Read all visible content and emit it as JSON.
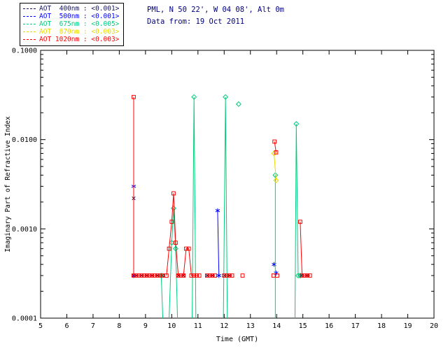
{
  "header": {
    "line1": "PML, N 50 22', W 04 08', Alt 0m",
    "line2": "Data from: 19 Oct 2011",
    "color": "#000080"
  },
  "legend": {
    "items": [
      {
        "label": "AOT  400nm : <0.001>",
        "color": "#16165e"
      },
      {
        "label": "AOT  500nm : <0.001>",
        "color": "#0000ff"
      },
      {
        "label": "AOT  675nm : <0.005>",
        "color": "#00cd7e"
      },
      {
        "label": "AOT  870nm : <0.003>",
        "color": "#e8d800"
      },
      {
        "label": "AOT 1020nm : <0.003>",
        "color": "#ff0000"
      }
    ]
  },
  "chart_data": {
    "type": "line",
    "title": "",
    "xlabel": "Time (GMT)",
    "ylabel": "Imaginary Part of Refractive Index",
    "xlim": [
      5,
      20
    ],
    "x_ticks": [
      5,
      6,
      7,
      8,
      9,
      10,
      11,
      12,
      13,
      14,
      15,
      16,
      17,
      18,
      19,
      20
    ],
    "x_tick_labels": [
      "5",
      "6",
      "7",
      "8",
      "9",
      "10",
      "11",
      "12",
      "13",
      "14",
      "15",
      "16",
      "17",
      "18",
      "19",
      "20"
    ],
    "ylog": true,
    "ylim": [
      0.0001,
      0.1
    ],
    "y_ticks": [
      0.0001,
      0.001,
      0.01,
      0.1
    ],
    "y_tick_labels": [
      "0.0001",
      "0.0010",
      "0.0100",
      "0.1000"
    ],
    "grid": false,
    "legend_position": "outside-top-left",
    "series": [
      {
        "name": "AOT 400nm",
        "color": "#16165e",
        "marker": "x",
        "lines": [
          [
            [
              8.55,
              0.0022
            ],
            [
              8.55,
              0.0003
            ]
          ]
        ],
        "points": [
          [
            8.65,
            0.0003
          ],
          [
            8.85,
            0.0003
          ],
          [
            9.05,
            0.0003
          ],
          [
            9.25,
            0.0003
          ],
          [
            9.45,
            0.0003
          ],
          [
            9.65,
            0.0003
          ],
          [
            10.25,
            0.0003
          ],
          [
            10.45,
            0.0003
          ],
          [
            11.35,
            0.0003
          ],
          [
            11.55,
            0.0003
          ],
          [
            12.0,
            0.0003
          ],
          [
            12.2,
            0.0003
          ],
          [
            14.95,
            0.0003
          ],
          [
            15.15,
            0.0003
          ]
        ]
      },
      {
        "name": "AOT 500nm",
        "color": "#0000ff",
        "marker": "asterisk",
        "lines": [
          [
            [
              8.55,
              0.003
            ],
            [
              8.55,
              0.0003
            ]
          ],
          [
            [
              11.75,
              0.0016
            ],
            [
              11.8,
              0.0003
            ]
          ]
        ],
        "points": [
          [
            13.9,
            0.0004
          ],
          [
            13.98,
            0.00032
          ]
        ]
      },
      {
        "name": "AOT 675nm",
        "color": "#00cd7e",
        "marker": "diamond",
        "lines": [
          [
            [
              9.6,
              0.0003
            ],
            [
              9.66,
              0.0001
            ]
          ],
          [
            [
              9.9,
              0.0001
            ],
            [
              10.0,
              0.0007
            ],
            [
              10.07,
              0.0017
            ],
            [
              10.15,
              0.0006
            ],
            [
              10.22,
              0.0001
            ]
          ],
          [
            [
              10.78,
              0.0001
            ],
            [
              10.85,
              0.03
            ],
            [
              10.92,
              0.0001
            ]
          ],
          [
            [
              11.97,
              0.0001
            ],
            [
              12.05,
              0.03
            ],
            [
              12.12,
              0.0001
            ]
          ],
          [
            [
              13.95,
              0.004
            ],
            [
              13.95,
              0.0001
            ]
          ],
          [
            [
              14.7,
              0.0001
            ],
            [
              14.75,
              0.015
            ],
            [
              14.82,
              0.0003
            ],
            [
              14.9,
              0.0003
            ]
          ]
        ],
        "points": [
          [
            12.55,
            0.025
          ]
        ]
      },
      {
        "name": "AOT 870nm",
        "color": "#e8d800",
        "marker": "diamond",
        "lines": [
          [
            [
              13.9,
              0.007
            ],
            [
              13.98,
              0.0035
            ]
          ]
        ],
        "points": []
      },
      {
        "name": "AOT 1020nm",
        "color": "#ff0000",
        "marker": "square",
        "lines": [
          [
            [
              8.55,
              0.03
            ],
            [
              8.55,
              0.0003
            ],
            [
              8.65,
              0.0003
            ],
            [
              8.75,
              0.0003
            ],
            [
              8.85,
              0.0003
            ],
            [
              8.95,
              0.0003
            ],
            [
              9.05,
              0.0003
            ],
            [
              9.15,
              0.0003
            ],
            [
              9.25,
              0.0003
            ],
            [
              9.35,
              0.0003
            ],
            [
              9.45,
              0.0003
            ],
            [
              9.55,
              0.0003
            ],
            [
              9.65,
              0.0003
            ]
          ],
          [
            [
              9.8,
              0.0003
            ],
            [
              9.9,
              0.0006
            ],
            [
              10.0,
              0.0012
            ],
            [
              10.07,
              0.0025
            ],
            [
              10.15,
              0.0007
            ],
            [
              10.25,
              0.0003
            ],
            [
              10.35,
              0.0003
            ],
            [
              10.45,
              0.0003
            ],
            [
              10.55,
              0.0006
            ],
            [
              10.65,
              0.0006
            ],
            [
              10.75,
              0.0003
            ],
            [
              10.85,
              0.0003
            ],
            [
              10.95,
              0.0003
            ],
            [
              11.05,
              0.0003
            ]
          ],
          [
            [
              11.35,
              0.0003
            ],
            [
              11.45,
              0.0003
            ],
            [
              11.55,
              0.0003
            ],
            [
              11.65,
              0.0003
            ]
          ],
          [
            [
              12.0,
              0.0003
            ],
            [
              12.1,
              0.0003
            ],
            [
              12.2,
              0.0003
            ],
            [
              12.3,
              0.0003
            ]
          ],
          [
            [
              13.92,
              0.0095
            ],
            [
              13.98,
              0.0072
            ]
          ],
          [
            [
              14.9,
              0.0012
            ],
            [
              14.97,
              0.0003
            ],
            [
              15.07,
              0.0003
            ],
            [
              15.17,
              0.0003
            ],
            [
              15.27,
              0.0003
            ]
          ]
        ],
        "points": [
          [
            12.7,
            0.0003
          ],
          [
            13.88,
            0.0003
          ],
          [
            14.02,
            0.0003
          ]
        ]
      }
    ]
  }
}
